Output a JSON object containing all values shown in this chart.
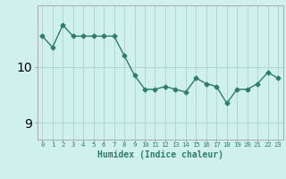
{
  "x": [
    0,
    1,
    2,
    3,
    4,
    5,
    6,
    7,
    8,
    9,
    10,
    11,
    12,
    13,
    14,
    15,
    16,
    17,
    18,
    19,
    20,
    21,
    22,
    23
  ],
  "y": [
    10.55,
    10.35,
    10.75,
    10.55,
    10.55,
    10.55,
    10.55,
    10.55,
    10.2,
    9.85,
    9.6,
    9.6,
    9.65,
    9.6,
    9.55,
    9.8,
    9.7,
    9.65,
    9.35,
    9.6,
    9.6,
    9.7,
    9.9,
    9.8
  ],
  "line_color": "#2e7d6e",
  "marker": "D",
  "markersize": 2.5,
  "linewidth": 1.0,
  "bg_color": "#cff0eb",
  "grid_color": "#afd8d2",
  "xlabel": "Humidex (Indice chaleur)",
  "xlabel_fontsize": 7,
  "yticks": [
    9,
    10
  ],
  "ylim": [
    8.7,
    11.1
  ],
  "xlim": [
    -0.5,
    23.5
  ],
  "title": ""
}
